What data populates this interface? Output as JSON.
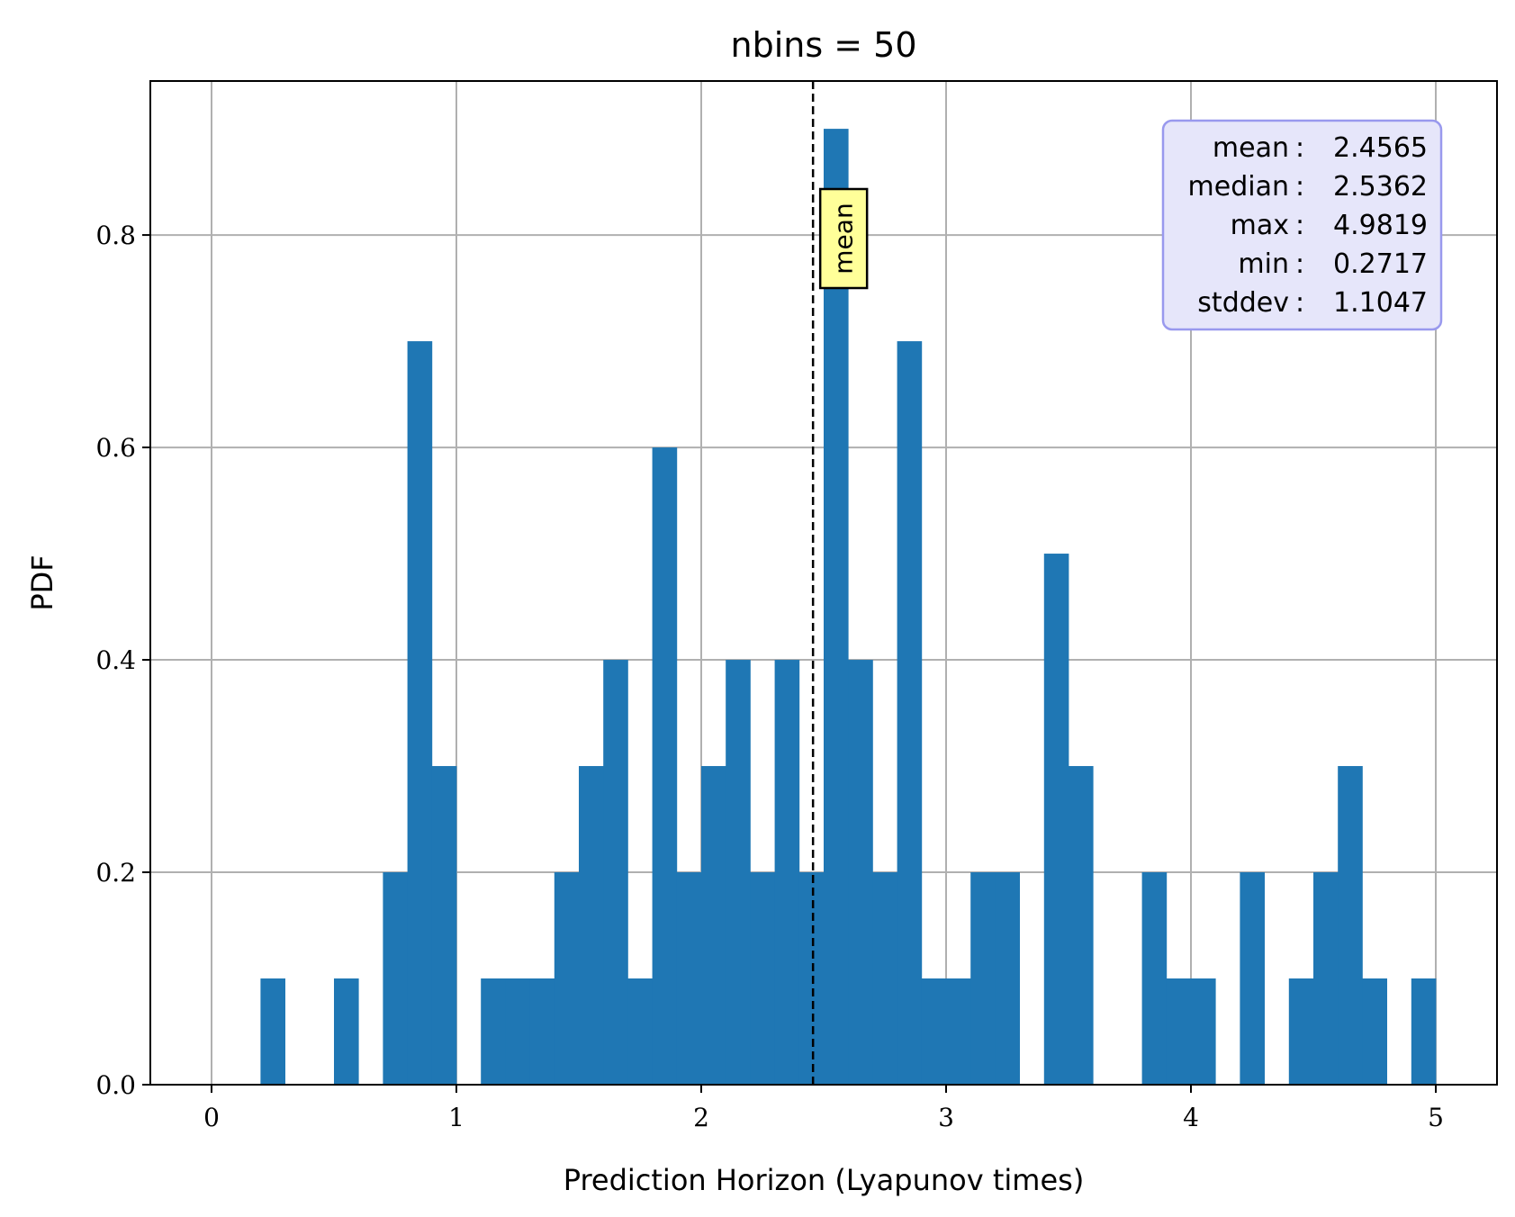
{
  "chart_data": {
    "type": "bar",
    "title": "nbins = 50",
    "xlabel": "Prediction Horizon (Lyapunov times)",
    "ylabel": "PDF",
    "xlim": [
      -0.25,
      5.25
    ],
    "ylim": [
      0,
      0.945
    ],
    "xticks": [
      0,
      1,
      2,
      3,
      4,
      5
    ],
    "yticks": [
      0.0,
      0.2,
      0.4,
      0.6,
      0.8
    ],
    "xtick_labels": [
      "0",
      "1",
      "2",
      "3",
      "4",
      "5"
    ],
    "ytick_labels": [
      "0.0",
      "0.2",
      "0.4",
      "0.6",
      "0.8"
    ],
    "grid": true,
    "bin_start": 0.0,
    "bin_width": 0.1,
    "values": [
      0,
      0,
      0.1,
      0,
      0,
      0.1,
      0,
      0.2,
      0.7,
      0.3,
      0,
      0.1,
      0.1,
      0.1,
      0.2,
      0.3,
      0.4,
      0.1,
      0.6,
      0.2,
      0.3,
      0.4,
      0.2,
      0.4,
      0.2,
      0.9,
      0.4,
      0.2,
      0.7,
      0.1,
      0.1,
      0.2,
      0.2,
      0,
      0.5,
      0.3,
      0,
      0,
      0.2,
      0.1,
      0.1,
      0,
      0.2,
      0,
      0.1,
      0.2,
      0.3,
      0.1,
      0,
      0.1
    ],
    "bar_color": "#1f77b4",
    "mean_line": {
      "x": 2.4565,
      "label": "mean",
      "style": "dashed",
      "color": "#000000"
    },
    "stats_box": {
      "placement": "top-right",
      "rows": [
        {
          "key": "mean",
          "value": "2.4565"
        },
        {
          "key": "median",
          "value": "2.5362"
        },
        {
          "key": "max",
          "value": "4.9819"
        },
        {
          "key": "min",
          "value": "0.2717"
        },
        {
          "key": "stddev",
          "value": "1.1047"
        }
      ],
      "face_color": "#e6e6fa",
      "edge_color": "#9999ee"
    },
    "mean_label_box": {
      "face_color": "#ffff99",
      "edge_color": "#000000"
    }
  }
}
